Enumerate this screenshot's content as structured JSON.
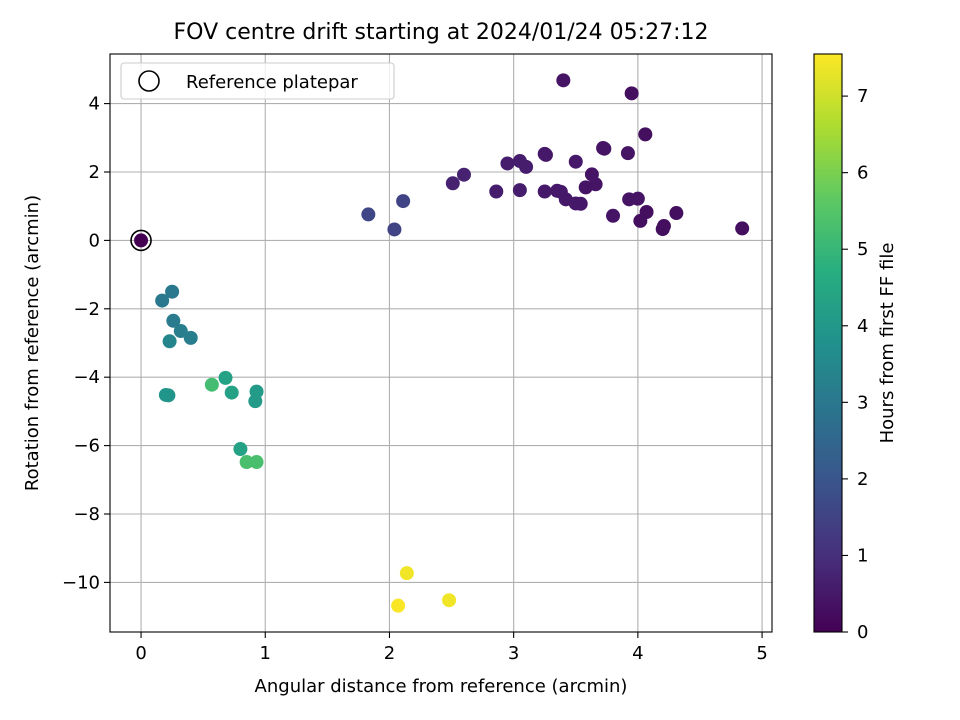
{
  "chart_data": {
    "type": "scatter",
    "title": "FOV centre drift starting at 2024/01/24 05:27:12",
    "xlabel": "Angular distance from reference (arcmin)",
    "ylabel": "Rotation from reference (arcmin)",
    "xlim": [
      -0.25,
      5.08
    ],
    "ylim": [
      -11.45,
      5.45
    ],
    "xticks": [
      0,
      1,
      2,
      3,
      4,
      5
    ],
    "yticks": [
      4,
      2,
      0,
      -2,
      -4,
      -6,
      -8,
      -10
    ],
    "xtick_labels": [
      "0",
      "1",
      "2",
      "3",
      "4",
      "5"
    ],
    "ytick_labels": [
      "4",
      "2",
      "0",
      "−2",
      "−4",
      "−6",
      "−8",
      "−10"
    ],
    "grid": true,
    "legend": {
      "placement": "top-left",
      "entries": [
        {
          "label": "Reference platepar",
          "marker": "open-circle",
          "color": "#000000"
        }
      ]
    },
    "reference_point": {
      "x": 0,
      "y": 0
    },
    "colorbar": {
      "label": "Hours from first FF file",
      "colormap": "viridis",
      "range": [
        0,
        7.55
      ],
      "ticks": [
        0,
        1,
        2,
        3,
        4,
        5,
        6,
        7
      ],
      "tick_labels": [
        "0",
        "1",
        "2",
        "3",
        "4",
        "5",
        "6",
        "7"
      ]
    },
    "series": [
      {
        "points": [
          {
            "x": 0.0,
            "y": 0.0,
            "hours": 0.0
          },
          {
            "x": 3.4,
            "y": 4.68,
            "hours": 0.4
          },
          {
            "x": 3.95,
            "y": 4.3,
            "hours": 0.3
          },
          {
            "x": 4.06,
            "y": 3.1,
            "hours": 0.3
          },
          {
            "x": 3.72,
            "y": 2.7,
            "hours": 0.4
          },
          {
            "x": 3.73,
            "y": 2.68,
            "hours": 0.4
          },
          {
            "x": 3.92,
            "y": 2.55,
            "hours": 0.4
          },
          {
            "x": 3.25,
            "y": 2.53,
            "hours": 0.5
          },
          {
            "x": 3.26,
            "y": 2.5,
            "hours": 0.5
          },
          {
            "x": 2.95,
            "y": 2.25,
            "hours": 0.6
          },
          {
            "x": 3.05,
            "y": 2.32,
            "hours": 0.6
          },
          {
            "x": 3.1,
            "y": 2.15,
            "hours": 0.6
          },
          {
            "x": 3.5,
            "y": 2.3,
            "hours": 0.5
          },
          {
            "x": 3.63,
            "y": 1.93,
            "hours": 0.4
          },
          {
            "x": 2.6,
            "y": 1.92,
            "hours": 0.7
          },
          {
            "x": 2.51,
            "y": 1.67,
            "hours": 0.7
          },
          {
            "x": 3.66,
            "y": 1.64,
            "hours": 0.4
          },
          {
            "x": 3.58,
            "y": 1.55,
            "hours": 0.4
          },
          {
            "x": 2.86,
            "y": 1.43,
            "hours": 0.6
          },
          {
            "x": 3.05,
            "y": 1.47,
            "hours": 0.6
          },
          {
            "x": 3.25,
            "y": 1.43,
            "hours": 0.5
          },
          {
            "x": 3.35,
            "y": 1.45,
            "hours": 0.5
          },
          {
            "x": 3.38,
            "y": 1.42,
            "hours": 0.5
          },
          {
            "x": 3.42,
            "y": 1.2,
            "hours": 0.5
          },
          {
            "x": 3.5,
            "y": 1.08,
            "hours": 0.5
          },
          {
            "x": 3.54,
            "y": 1.07,
            "hours": 0.5
          },
          {
            "x": 3.93,
            "y": 1.2,
            "hours": 0.4
          },
          {
            "x": 4.0,
            "y": 1.22,
            "hours": 0.4
          },
          {
            "x": 3.8,
            "y": 0.72,
            "hours": 0.4
          },
          {
            "x": 4.07,
            "y": 0.83,
            "hours": 0.3
          },
          {
            "x": 4.02,
            "y": 0.57,
            "hours": 0.3
          },
          {
            "x": 4.2,
            "y": 0.33,
            "hours": 0.3
          },
          {
            "x": 4.21,
            "y": 0.42,
            "hours": 0.3
          },
          {
            "x": 4.31,
            "y": 0.8,
            "hours": 0.3
          },
          {
            "x": 4.84,
            "y": 0.35,
            "hours": 0.3
          },
          {
            "x": 2.11,
            "y": 1.15,
            "hours": 1.5
          },
          {
            "x": 1.83,
            "y": 0.76,
            "hours": 1.6
          },
          {
            "x": 2.04,
            "y": 0.32,
            "hours": 1.5
          },
          {
            "x": 0.17,
            "y": -1.76,
            "hours": 3.0
          },
          {
            "x": 0.25,
            "y": -1.5,
            "hours": 3.0
          },
          {
            "x": 0.26,
            "y": -2.35,
            "hours": 3.1
          },
          {
            "x": 0.32,
            "y": -2.65,
            "hours": 3.2
          },
          {
            "x": 0.4,
            "y": -2.85,
            "hours": 3.2
          },
          {
            "x": 0.23,
            "y": -2.95,
            "hours": 3.4
          },
          {
            "x": 0.2,
            "y": -4.52,
            "hours": 3.9
          },
          {
            "x": 0.22,
            "y": -4.53,
            "hours": 3.9
          },
          {
            "x": 0.57,
            "y": -4.22,
            "hours": 5.2
          },
          {
            "x": 0.68,
            "y": -4.02,
            "hours": 4.3
          },
          {
            "x": 0.73,
            "y": -4.45,
            "hours": 4.3
          },
          {
            "x": 0.93,
            "y": -4.42,
            "hours": 4.1
          },
          {
            "x": 0.92,
            "y": -4.7,
            "hours": 4.1
          },
          {
            "x": 0.8,
            "y": -6.1,
            "hours": 4.3
          },
          {
            "x": 0.85,
            "y": -6.48,
            "hours": 5.3
          },
          {
            "x": 0.93,
            "y": -6.48,
            "hours": 5.3
          },
          {
            "x": 2.14,
            "y": -9.73,
            "hours": 7.4
          },
          {
            "x": 2.07,
            "y": -10.68,
            "hours": 7.5
          },
          {
            "x": 2.48,
            "y": -10.52,
            "hours": 7.4
          }
        ]
      }
    ]
  }
}
